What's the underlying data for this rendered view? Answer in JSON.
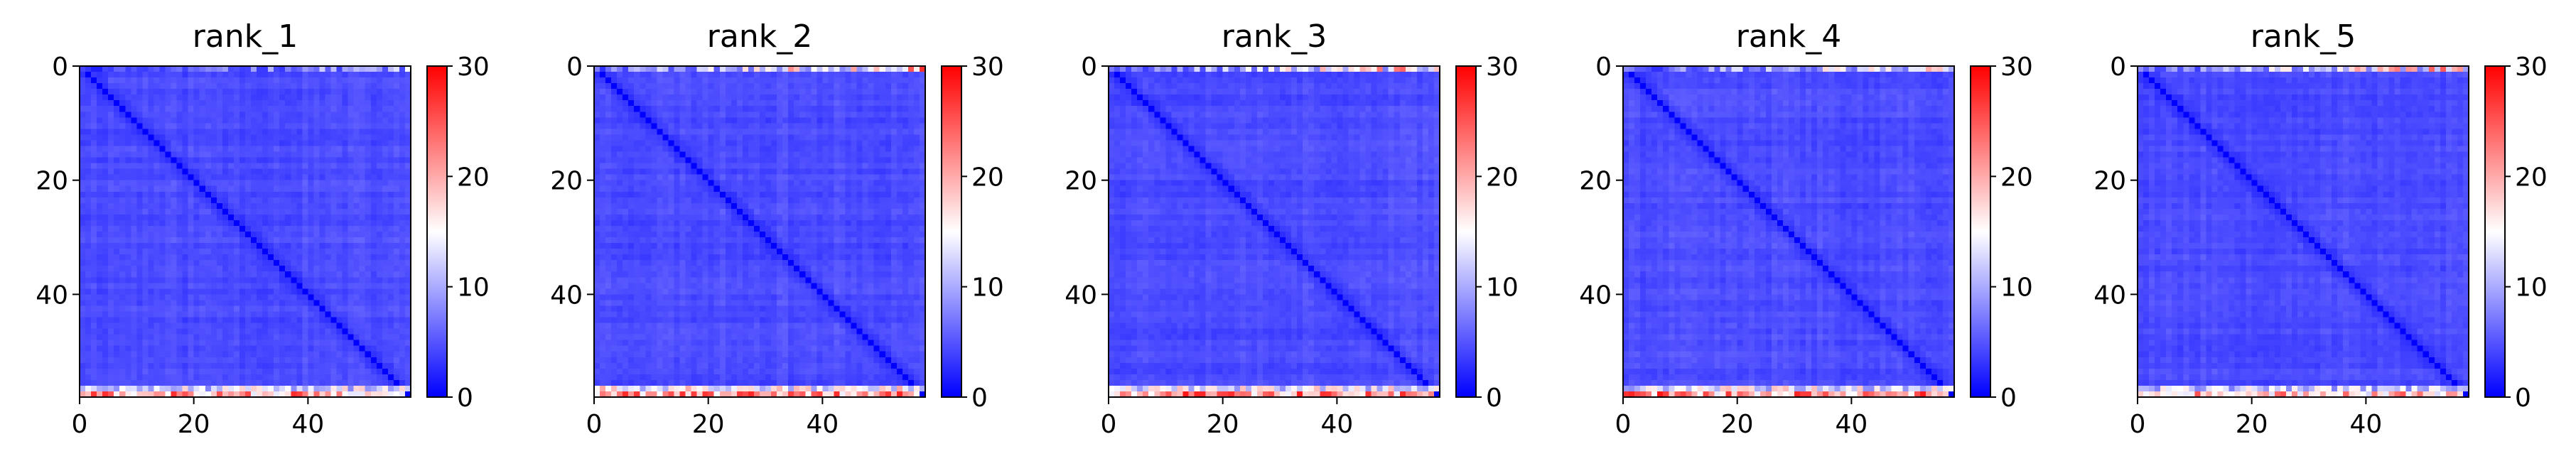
{
  "figure": {
    "background": "#ffffff"
  },
  "chart_data": [
    {
      "type": "heatmap",
      "title": "rank_1",
      "size": 58,
      "x_ticks": [
        0,
        20,
        40
      ],
      "y_ticks": [
        0,
        20,
        40
      ],
      "xlim": [
        0,
        58
      ],
      "ylim": [
        58,
        0
      ],
      "colorbar": {
        "min": 0,
        "max": 30,
        "ticks": [
          0,
          10,
          20,
          30
        ],
        "colormap": "bwr",
        "low_color": "#0000ff",
        "mid_color": "#ffffff",
        "high_color": "#ff0000"
      },
      "diagonal_value": 0,
      "body_value_range": [
        3,
        6
      ],
      "edge_rows": {
        "top_row_0": 10,
        "bottom_row_56": 15,
        "bottom_row_57": 24
      },
      "seed": 11
    },
    {
      "type": "heatmap",
      "title": "rank_2",
      "size": 58,
      "x_ticks": [
        0,
        20,
        40
      ],
      "y_ticks": [
        0,
        20,
        40
      ],
      "xlim": [
        0,
        58
      ],
      "ylim": [
        58,
        0
      ],
      "colorbar": {
        "min": 0,
        "max": 30,
        "ticks": [
          0,
          10,
          20,
          30
        ],
        "colormap": "bwr",
        "low_color": "#0000ff",
        "mid_color": "#ffffff",
        "high_color": "#ff0000"
      },
      "diagonal_value": 0,
      "body_value_range": [
        3,
        6
      ],
      "edge_rows": {
        "top_row_0": 20,
        "bottom_row_56": 17,
        "bottom_row_57": 25
      },
      "seed": 23
    },
    {
      "type": "heatmap",
      "title": "rank_3",
      "size": 58,
      "x_ticks": [
        0,
        20,
        40
      ],
      "y_ticks": [
        0,
        20,
        40
      ],
      "xlim": [
        0,
        58
      ],
      "ylim": [
        58,
        0
      ],
      "colorbar": {
        "min": 0,
        "max": 30,
        "ticks": [
          0,
          10,
          20,
          30
        ],
        "colormap": "bwr",
        "low_color": "#0000ff",
        "mid_color": "#ffffff",
        "high_color": "#ff0000"
      },
      "diagonal_value": 0,
      "body_value_range": [
        3,
        6
      ],
      "edge_rows": {
        "top_row_0": 18,
        "bottom_row_56": 16,
        "bottom_row_57": 25
      },
      "seed": 37
    },
    {
      "type": "heatmap",
      "title": "rank_4",
      "size": 58,
      "x_ticks": [
        0,
        20,
        40
      ],
      "y_ticks": [
        0,
        20,
        40
      ],
      "xlim": [
        0,
        58
      ],
      "ylim": [
        58,
        0
      ],
      "colorbar": {
        "min": 0,
        "max": 30,
        "ticks": [
          0,
          10,
          20,
          30
        ],
        "colormap": "bwr",
        "low_color": "#0000ff",
        "mid_color": "#ffffff",
        "high_color": "#ff0000"
      },
      "diagonal_value": 0,
      "body_value_range": [
        3,
        6
      ],
      "edge_rows": {
        "top_row_0": 16,
        "bottom_row_56": 16,
        "bottom_row_57": 25
      },
      "seed": 41
    },
    {
      "type": "heatmap",
      "title": "rank_5",
      "size": 58,
      "x_ticks": [
        0,
        20,
        40
      ],
      "y_ticks": [
        0,
        20,
        40
      ],
      "xlim": [
        0,
        58
      ],
      "ylim": [
        58,
        0
      ],
      "colorbar": {
        "min": 0,
        "max": 30,
        "ticks": [
          0,
          10,
          20,
          30
        ],
        "colormap": "bwr",
        "low_color": "#0000ff",
        "mid_color": "#ffffff",
        "high_color": "#ff0000"
      },
      "diagonal_value": 0,
      "body_value_range": [
        3,
        6
      ],
      "edge_rows": {
        "top_row_0": 18,
        "bottom_row_56": 14,
        "bottom_row_57": 22
      },
      "seed": 53
    }
  ]
}
